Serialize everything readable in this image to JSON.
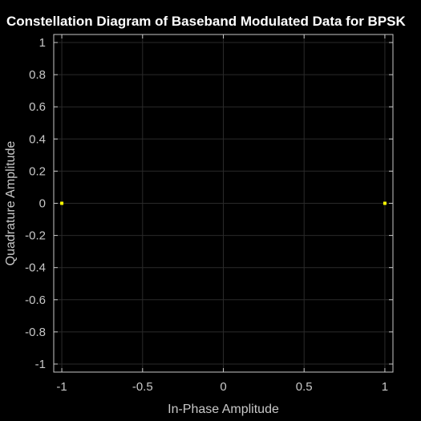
{
  "chart_data": {
    "type": "scatter",
    "title": "Constellation Diagram of Baseband Modulated Data for BPSK",
    "xlabel": "In-Phase Amplitude",
    "ylabel": "Quadrature Amplitude",
    "xlim": [
      -1.05,
      1.05
    ],
    "ylim": [
      -1.05,
      1.05
    ],
    "x_ticks": [
      -1,
      -0.5,
      0,
      0.5,
      1
    ],
    "x_tick_labels": [
      "-1",
      "-0.5",
      "0",
      "0.5",
      "1"
    ],
    "y_ticks": [
      1,
      0.8,
      0.6,
      0.4,
      0.2,
      0,
      -0.2,
      -0.4,
      -0.6,
      -0.8,
      -1
    ],
    "y_tick_labels": [
      "1",
      "0.8",
      "0.6",
      "0.4",
      "0.2",
      "0",
      "-0.2",
      "-0.4",
      "-0.6",
      "-0.8",
      "-1"
    ],
    "grid": true,
    "series": [
      {
        "points": [
          {
            "x": -1,
            "y": 0
          },
          {
            "x": 1,
            "y": 0
          }
        ]
      }
    ],
    "colors": {
      "background": "#000000",
      "axes": "#c8c8c8",
      "grid": "#2a2a2a",
      "marker": "#ffff00",
      "title": "#ffffff"
    }
  }
}
